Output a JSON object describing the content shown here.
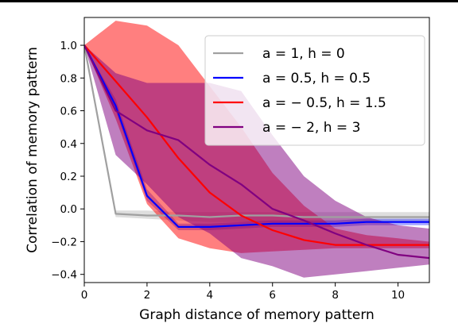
{
  "chart_data": {
    "type": "line",
    "xlabel": "Graph distance of memory pattern",
    "ylabel": "Correlation of memory pattern",
    "xlim": [
      0,
      11
    ],
    "ylim": [
      -0.45,
      1.17
    ],
    "x_ticks": [
      0,
      2,
      4,
      6,
      8,
      10
    ],
    "y_ticks": [
      -0.4,
      -0.2,
      0.0,
      0.2,
      0.4,
      0.6,
      0.8,
      1.0
    ],
    "grid": false,
    "legend_position": "top-right",
    "x": [
      0,
      1,
      2,
      3,
      4,
      5,
      6,
      7,
      8,
      9,
      10,
      11
    ],
    "series": [
      {
        "name": "a = 1, h = 0",
        "color": "#a0a0a0",
        "values": [
          1.0,
          -0.03,
          -0.04,
          -0.04,
          -0.05,
          -0.04,
          -0.04,
          -0.05,
          -0.05,
          -0.05,
          -0.05,
          -0.05
        ],
        "band_upper": [
          1.0,
          -0.01,
          -0.01,
          -0.02,
          -0.02,
          -0.02,
          -0.02,
          -0.02,
          -0.02,
          -0.02,
          -0.02,
          -0.02
        ],
        "band_lower": [
          1.0,
          -0.05,
          -0.06,
          -0.07,
          -0.08,
          -0.08,
          -0.08,
          -0.08,
          -0.08,
          -0.08,
          -0.08,
          -0.08
        ]
      },
      {
        "name": "a = 0.5, h = 0.5",
        "color": "#0000ff",
        "values": [
          1.0,
          0.63,
          0.08,
          -0.11,
          -0.11,
          -0.1,
          -0.09,
          -0.09,
          -0.09,
          -0.08,
          -0.08,
          -0.08
        ],
        "band_upper": [
          1.0,
          0.67,
          0.12,
          -0.09,
          -0.09,
          -0.08,
          -0.07,
          -0.07,
          -0.07,
          -0.06,
          -0.06,
          -0.06
        ],
        "band_lower": [
          1.0,
          0.6,
          0.05,
          -0.13,
          -0.13,
          -0.12,
          -0.11,
          -0.11,
          -0.11,
          -0.1,
          -0.1,
          -0.1
        ]
      },
      {
        "name": "a = − 0.5, h = 1.5",
        "color": "#ff0000",
        "values": [
          1.0,
          0.78,
          0.56,
          0.31,
          0.1,
          -0.04,
          -0.13,
          -0.19,
          -0.22,
          -0.22,
          -0.22,
          -0.22
        ],
        "band_upper": [
          1.0,
          1.15,
          1.12,
          1.0,
          0.75,
          0.5,
          0.22,
          0.02,
          -0.12,
          -0.16,
          -0.18,
          -0.2
        ],
        "band_lower": [
          1.0,
          0.55,
          0.03,
          -0.18,
          -0.24,
          -0.27,
          -0.26,
          -0.25,
          -0.24,
          -0.24,
          -0.24,
          -0.24
        ]
      },
      {
        "name": "a = − 2, h = 3",
        "color": "#800080",
        "values": [
          1.0,
          0.6,
          0.48,
          0.42,
          0.27,
          0.15,
          0.0,
          -0.07,
          -0.15,
          -0.22,
          -0.28,
          -0.3
        ],
        "band_upper": [
          1.0,
          0.83,
          0.77,
          0.77,
          0.77,
          0.72,
          0.45,
          0.2,
          0.05,
          -0.05,
          -0.1,
          -0.12
        ],
        "band_lower": [
          1.0,
          0.33,
          0.15,
          -0.05,
          -0.15,
          -0.3,
          -0.35,
          -0.42,
          -0.4,
          -0.38,
          -0.36,
          -0.34
        ]
      }
    ],
    "legend": [
      {
        "label": "a = 1, h = 0",
        "color": "#a0a0a0"
      },
      {
        "label": "a = 0.5, h = 0.5",
        "color": "#0000ff"
      },
      {
        "label": "a = − 0.5, h = 1.5",
        "color": "#ff0000"
      },
      {
        "label": "a = − 2, h = 3",
        "color": "#800080"
      }
    ]
  }
}
